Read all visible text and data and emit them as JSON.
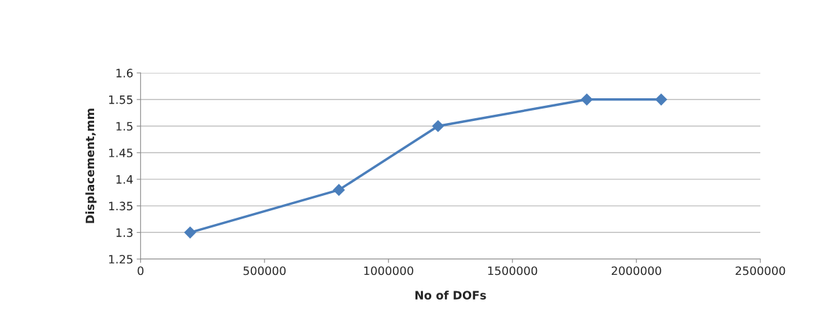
{
  "chart_data": {
    "type": "line",
    "xlabel": "No of DOFs",
    "ylabel": "Displacement,mm",
    "x": [
      200000,
      800000,
      1200000,
      1800000,
      2100000
    ],
    "series": [
      {
        "color": "#4a7ebb",
        "values": [
          1.3,
          1.38,
          1.5,
          1.55,
          1.55
        ]
      }
    ],
    "xlim": [
      0,
      2500000
    ],
    "xticks": [
      0,
      500000,
      1000000,
      1500000,
      2000000,
      2500000
    ],
    "ylim": [
      1.25,
      1.6
    ],
    "yticks": [
      1.25,
      1.3,
      1.35,
      1.4,
      1.45,
      1.5,
      1.55,
      1.6
    ],
    "grid": "y",
    "marker": "diamond",
    "line_style": "solid",
    "legend": false
  }
}
